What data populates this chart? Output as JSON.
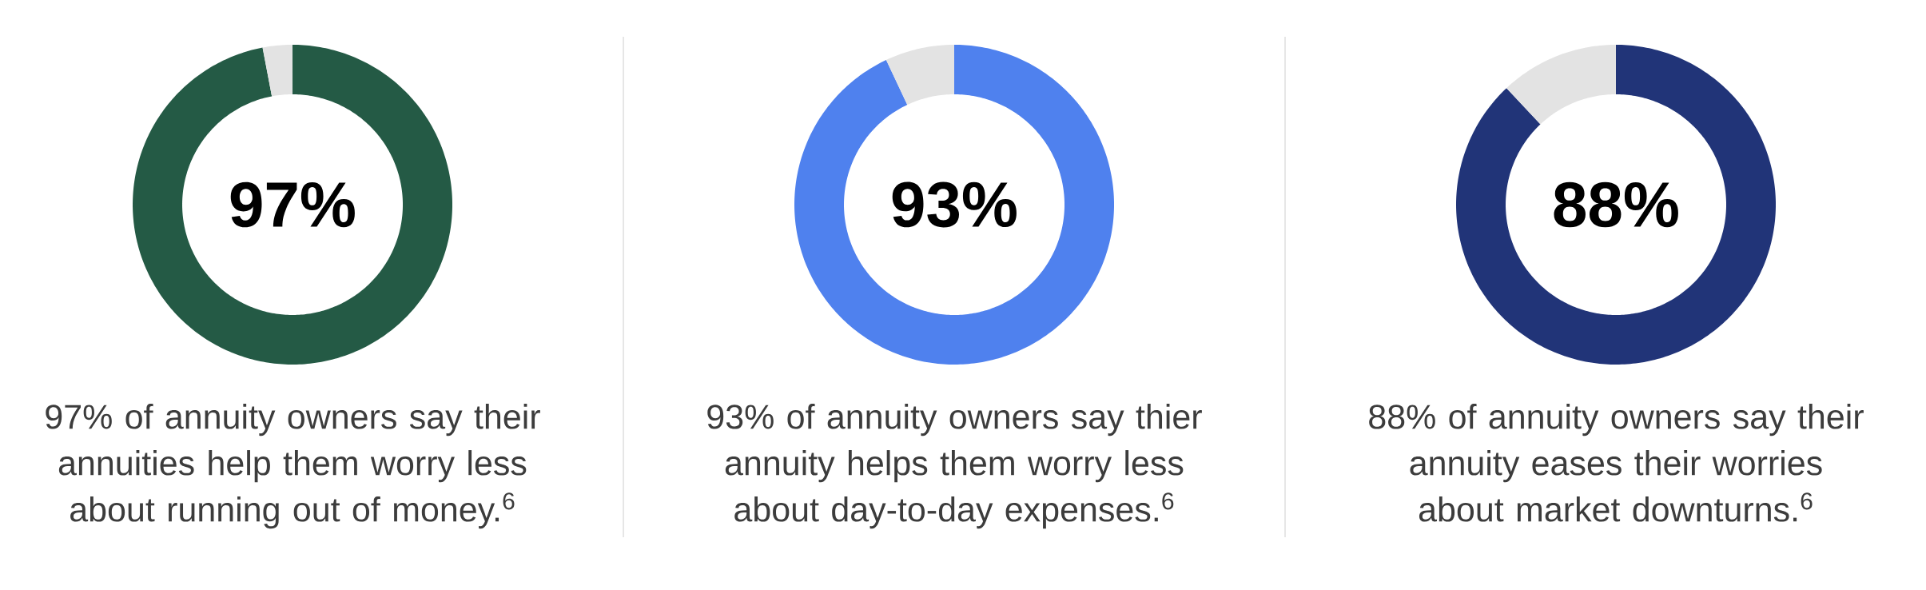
{
  "chart_data": [
    {
      "type": "donut",
      "categories": [
        null,
        null
      ],
      "values": [
        97,
        3
      ],
      "colors": [
        "#245a45",
        "#e3e3e3"
      ],
      "value_labels": [
        "97%",
        null
      ],
      "annotations": [
        "97% of annuity owners say their annuities help them worry less about running out of money.$^{6}$"
      ]
    },
    {
      "type": "donut",
      "categories": [
        null,
        null
      ],
      "values": [
        93,
        7
      ],
      "colors": [
        "#4f81ee",
        "#e3e3e3"
      ],
      "value_labels": [
        "93%",
        null
      ],
      "annotations": [
        "93% of annuity owners say thier annuity helps them worry less about day-to-day expenses.$^{6}$"
      ]
    },
    {
      "type": "donut",
      "categories": [
        null,
        null
      ],
      "values": [
        88,
        12
      ],
      "colors": [
        "#213478",
        "#e3e3e3"
      ],
      "value_labels": [
        "88%",
        null
      ],
      "annotations": [
        "88% of annuity owners say their annuity eases their worries about market downturns.$^{6}$"
      ]
    }
  ]
}
